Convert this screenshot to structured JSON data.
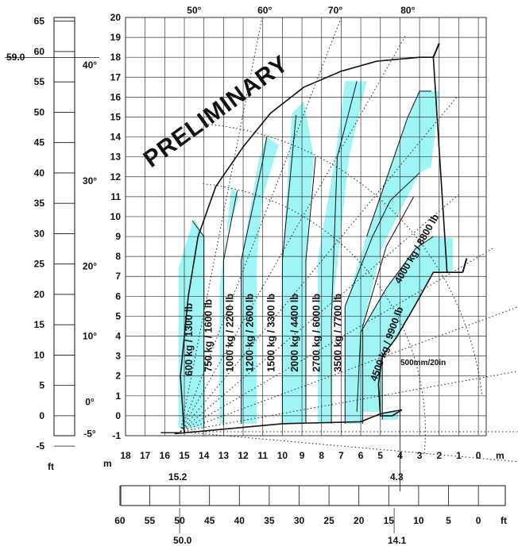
{
  "chart_data": {
    "type": "load-chart",
    "watermark": "PRELIMINARY",
    "x_unit": "m",
    "y_unit": "m",
    "x_ticks": [
      18,
      17,
      16,
      15,
      14,
      13,
      12,
      11,
      10,
      9,
      8,
      7,
      6,
      5,
      4,
      3,
      2,
      1,
      0
    ],
    "y_ticks": [
      -1,
      0,
      1,
      2,
      3,
      4,
      5,
      6,
      7,
      8,
      9,
      10,
      11,
      12,
      13,
      14,
      15,
      16,
      17,
      18,
      19,
      20
    ],
    "left_ft_ticks": [
      65,
      60,
      55,
      50,
      45,
      40,
      35,
      30,
      25,
      20,
      15,
      10,
      5,
      0,
      -5
    ],
    "left_ft_unit": "ft",
    "left_ft_marker": "59.0",
    "bottom_ft_ticks": [
      60,
      55,
      50,
      45,
      40,
      35,
      30,
      25,
      20,
      15,
      10,
      5,
      0
    ],
    "bottom_ft_unit": "ft",
    "bottom_ft_marker": "50.0",
    "bottom_ft_marker2": "14.1",
    "reach_marker_left": "15.2",
    "reach_marker_right": "4.3",
    "boom_angles_top": [
      {
        "label": "50°",
        "x": 14.5
      },
      {
        "label": "60°",
        "x": 10.9
      },
      {
        "label": "70°",
        "x": 7.3
      },
      {
        "label": "80°",
        "x": 3.6
      }
    ],
    "boom_angles_left": [
      {
        "label": "40°",
        "y": 17.6
      },
      {
        "label": "30°",
        "y": 11.8
      },
      {
        "label": "20°",
        "y": 7.5
      },
      {
        "label": "10°",
        "y": 4.0
      },
      {
        "label": "0°",
        "y": 0.7
      },
      {
        "label": "-5°",
        "y": -0.9
      }
    ],
    "max_height_m": 18,
    "max_reach_m": 15,
    "fork_offset_label": "500mm/20in",
    "load_zones": [
      {
        "label": "600 kg / 1300 lb",
        "label_x": 14.6,
        "label_y": 2.0
      },
      {
        "label": "750 kg / 1600 lb",
        "label_x": 13.6,
        "label_y": 2.2
      },
      {
        "label": "1000 kg / 2200 lb",
        "label_x": 12.5,
        "label_y": 2.2
      },
      {
        "label": "1200 kg / 2600 lb",
        "label_x": 11.5,
        "label_y": 2.2
      },
      {
        "label": "1500 kg / 3300 lb",
        "label_x": 10.4,
        "label_y": 2.2
      },
      {
        "label": "2000 kg / 4400 lb",
        "label_x": 9.2,
        "label_y": 2.2
      },
      {
        "label": "2700 kg / 6000 lb",
        "label_x": 8.1,
        "label_y": 2.2
      },
      {
        "label": "3500 kg / 7700 lb",
        "label_x": 7.0,
        "label_y": 2.2
      },
      {
        "label": "4500 kg / 9900 lb",
        "label_x": 5.2,
        "label_y": 1.7
      },
      {
        "label": "4000 kg / 8800 lb",
        "label_x": 4.0,
        "label_y": 6.6
      }
    ],
    "colors": {
      "fill": "#9ff5f5",
      "line": "#111111",
      "grid": "#333333"
    }
  }
}
